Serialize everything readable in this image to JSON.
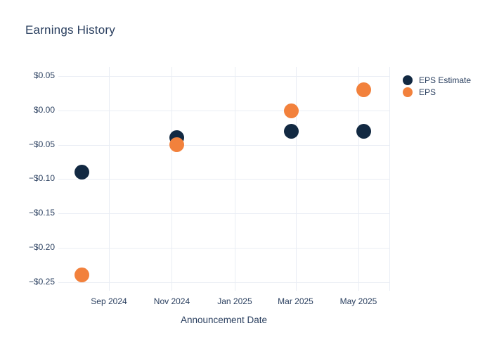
{
  "chart_data": {
    "type": "scatter",
    "title": "Earnings History",
    "xlabel": "Announcement Date",
    "ylabel": "",
    "grid": true,
    "background_color": "#ffffff",
    "grid_color": "#e9edf4",
    "text_color": "#2a3f5f",
    "marker_style": "filled-circle",
    "legend": {
      "position": "top-right-outside"
    },
    "x_ticks": [
      {
        "date": "2024-09-01",
        "label": "Sep 2024"
      },
      {
        "date": "2024-11-01",
        "label": "Nov 2024"
      },
      {
        "date": "2025-01-01",
        "label": "Jan 2025"
      },
      {
        "date": "2025-03-01",
        "label": "Mar 2025"
      },
      {
        "date": "2025-05-01",
        "label": "May 2025"
      }
    ],
    "y_ticks": [
      {
        "value": 0.05,
        "label": "$0.05"
      },
      {
        "value": 0.0,
        "label": "$0.00"
      },
      {
        "value": -0.05,
        "label": "−$0.05"
      },
      {
        "value": -0.1,
        "label": "−$0.10"
      },
      {
        "value": -0.15,
        "label": "−$0.15"
      },
      {
        "value": -0.2,
        "label": "−$0.20"
      },
      {
        "value": -0.25,
        "label": "−$0.25"
      }
    ],
    "xlim": [
      "2024-07-14",
      "2025-05-31"
    ],
    "ylim": [
      -0.263,
      0.064
    ],
    "series": [
      {
        "name": "EPS Estimate",
        "color": "#122942",
        "points": [
          {
            "date": "2024-08-06",
            "value": -0.09
          },
          {
            "date": "2024-11-06",
            "value": -0.04
          },
          {
            "date": "2025-02-25",
            "value": -0.03
          },
          {
            "date": "2025-05-06",
            "value": -0.03
          }
        ]
      },
      {
        "name": "EPS",
        "color": "#f2813c",
        "points": [
          {
            "date": "2024-08-06",
            "value": -0.24
          },
          {
            "date": "2024-11-06",
            "value": -0.05
          },
          {
            "date": "2025-02-25",
            "value": 0.0
          },
          {
            "date": "2025-05-06",
            "value": 0.03
          }
        ]
      }
    ]
  }
}
